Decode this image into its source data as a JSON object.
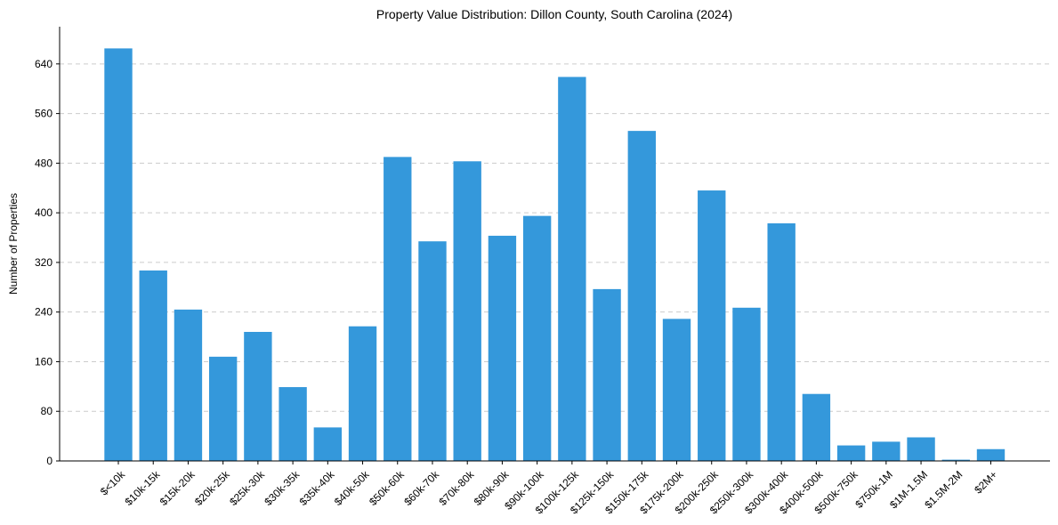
{
  "chart_data": {
    "type": "bar",
    "title": "Property Value Distribution: Dillon County, South Carolina (2024)",
    "xlabel": "",
    "ylabel": "Number of Properties",
    "ylim": [
      0,
      700
    ],
    "yticks": [
      0,
      80,
      160,
      240,
      320,
      400,
      480,
      560,
      640
    ],
    "grid": "y-dashed",
    "bar_color": "#3498db",
    "categories": [
      "$<10k",
      "$10k-15k",
      "$15k-20k",
      "$20k-25k",
      "$25k-30k",
      "$30k-35k",
      "$35k-40k",
      "$40k-50k",
      "$50k-60k",
      "$60k-70k",
      "$70k-80k",
      "$80k-90k",
      "$90k-100k",
      "$100k-125k",
      "$125k-150k",
      "$150k-175k",
      "$175k-200k",
      "$200k-250k",
      "$250k-300k",
      "$300k-400k",
      "$400k-500k",
      "$500k-750k",
      "$750k-1M",
      "$1M-1.5M",
      "$1.5M-2M",
      "$2M+"
    ],
    "values": [
      665,
      307,
      244,
      168,
      208,
      119,
      54,
      217,
      490,
      354,
      483,
      363,
      395,
      619,
      277,
      532,
      229,
      436,
      247,
      383,
      108,
      25,
      31,
      38,
      2,
      19
    ]
  }
}
